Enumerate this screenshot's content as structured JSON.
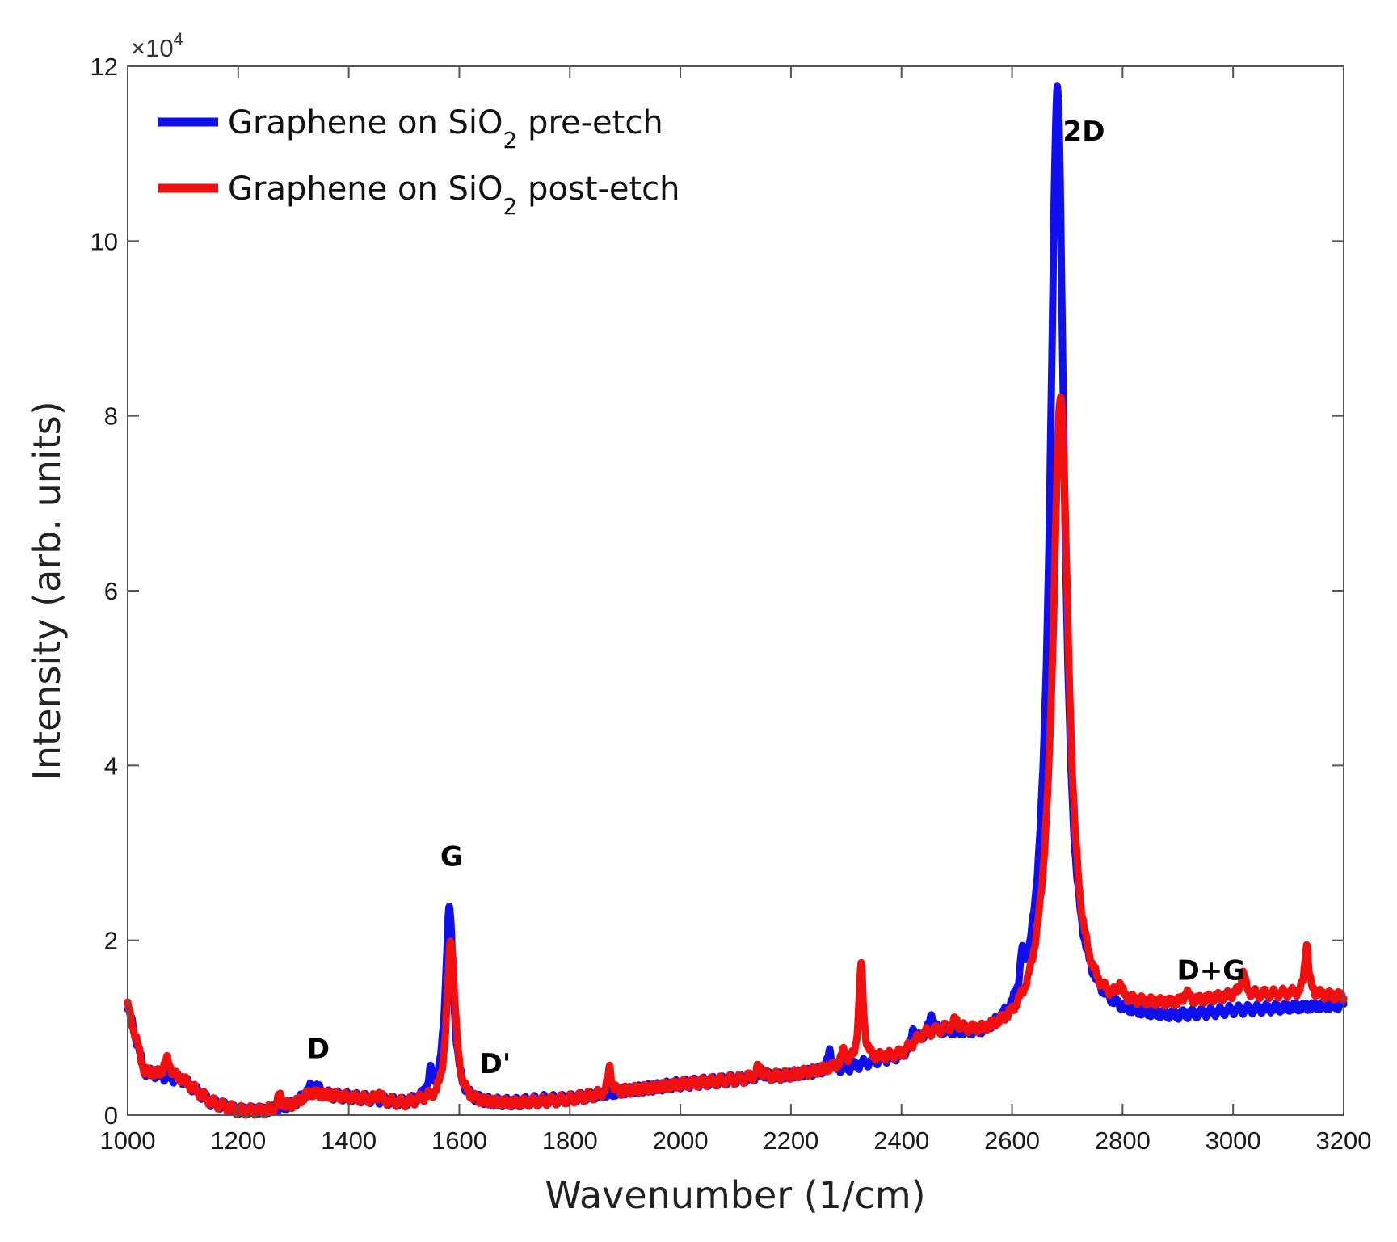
{
  "chart_data": {
    "type": "line",
    "xlabel": "Wavenumber (1/cm)",
    "ylabel": "Intensity (arb. units)",
    "xlim": [
      1000,
      3200
    ],
    "ylim": [
      0,
      120000
    ],
    "x_ticks": [
      1000,
      1200,
      1400,
      1600,
      1800,
      2000,
      2200,
      2400,
      2600,
      2800,
      3000,
      3200
    ],
    "x_tick_labels": [
      "1000",
      "1200",
      "1400",
      "1600",
      "1800",
      "2000",
      "2200",
      "2400",
      "2600",
      "2800",
      "3000",
      "3200"
    ],
    "y_ticks": [
      0,
      20000,
      40000,
      60000,
      80000,
      100000,
      120000
    ],
    "y_tick_labels": [
      "0",
      "2",
      "4",
      "6",
      "8",
      "10",
      "12"
    ],
    "y_multiplier": {
      "base": "×10",
      "exp": "4"
    },
    "grid": false,
    "legend_position": "top-left",
    "series": [
      {
        "name": "Graphene on SiO2 pre-etch",
        "legend": {
          "prefix": "Graphene on SiO",
          "sub": "2",
          "suffix": " pre-etch"
        },
        "color": "#1010ee",
        "baseline": [
          [
            1000,
            12500
          ],
          [
            1030,
            5000
          ],
          [
            1060,
            4500
          ],
          [
            1100,
            4000
          ],
          [
            1150,
            1500
          ],
          [
            1200,
            500
          ],
          [
            1250,
            500
          ],
          [
            1300,
            1200
          ],
          [
            1330,
            2500
          ],
          [
            1360,
            2200
          ],
          [
            1400,
            2000
          ],
          [
            1450,
            1700
          ],
          [
            1500,
            1200
          ],
          [
            1540,
            1500
          ],
          [
            1560,
            1000
          ],
          [
            1620,
            1200
          ],
          [
            1700,
            1300
          ],
          [
            1750,
            1700
          ],
          [
            1800,
            1800
          ],
          [
            1900,
            2700
          ],
          [
            2000,
            3500
          ],
          [
            2100,
            4000
          ],
          [
            2200,
            4500
          ],
          [
            2300,
            5200
          ],
          [
            2350,
            6000
          ],
          [
            2400,
            6500
          ],
          [
            2440,
            8500
          ],
          [
            2480,
            9000
          ],
          [
            2550,
            8500
          ],
          [
            2600,
            9500
          ],
          [
            2630,
            10500
          ],
          [
            2660,
            14000
          ],
          [
            2700,
            11500
          ],
          [
            2760,
            11000
          ],
          [
            2800,
            10800
          ],
          [
            2900,
            11000
          ],
          [
            3000,
            11800
          ],
          [
            3100,
            12200
          ],
          [
            3200,
            12500
          ]
        ],
        "peaks": [
          {
            "center": 1582,
            "height": 22500,
            "width": 9
          },
          {
            "center": 1548,
            "height": 2500,
            "width": 5
          },
          {
            "center": 1338,
            "height": 1000,
            "width": 10
          },
          {
            "center": 2682,
            "height": 105000,
            "width": 15
          },
          {
            "center": 2618,
            "height": 3500,
            "width": 4
          },
          {
            "center": 2270,
            "height": 2500,
            "width": 4
          },
          {
            "center": 2422,
            "height": 2000,
            "width": 4
          },
          {
            "center": 2455,
            "height": 2200,
            "width": 6
          },
          {
            "center": 2145,
            "height": 800,
            "width": 6
          }
        ]
      },
      {
        "name": "Graphene on SiO2 post-etch",
        "legend": {
          "prefix": "Graphene on SiO",
          "sub": "2",
          "suffix": " post-etch"
        },
        "color": "#f01010",
        "baseline": [
          [
            1000,
            12500
          ],
          [
            1030,
            5000
          ],
          [
            1060,
            4500
          ],
          [
            1100,
            4000
          ],
          [
            1150,
            1500
          ],
          [
            1200,
            500
          ],
          [
            1250,
            500
          ],
          [
            1300,
            1200
          ],
          [
            1330,
            2500
          ],
          [
            1360,
            2300
          ],
          [
            1400,
            2000
          ],
          [
            1450,
            1700
          ],
          [
            1500,
            1200
          ],
          [
            1540,
            1500
          ],
          [
            1560,
            1000
          ],
          [
            1620,
            1200
          ],
          [
            1700,
            1300
          ],
          [
            1750,
            1500
          ],
          [
            1800,
            1800
          ],
          [
            1900,
            2700
          ],
          [
            2000,
            3500
          ],
          [
            2100,
            4000
          ],
          [
            2200,
            4500
          ],
          [
            2300,
            5500
          ],
          [
            2350,
            6200
          ],
          [
            2400,
            6800
          ],
          [
            2440,
            9000
          ],
          [
            2480,
            9500
          ],
          [
            2550,
            9000
          ],
          [
            2600,
            9500
          ],
          [
            2630,
            10500
          ],
          [
            2660,
            13000
          ],
          [
            2700,
            12000
          ],
          [
            2760,
            11500
          ],
          [
            2800,
            12000
          ],
          [
            2900,
            12500
          ],
          [
            3000,
            13500
          ],
          [
            3100,
            13800
          ],
          [
            3200,
            13500
          ]
        ],
        "peaks": [
          {
            "center": 1585,
            "height": 19000,
            "width": 9
          },
          {
            "center": 2688,
            "height": 70000,
            "width": 17
          },
          {
            "center": 2327,
            "height": 11000,
            "width": 5
          },
          {
            "center": 1872,
            "height": 3000,
            "width": 4
          },
          {
            "center": 1072,
            "height": 2000,
            "width": 7
          },
          {
            "center": 1275,
            "height": 1500,
            "width": 4
          },
          {
            "center": 1455,
            "height": 700,
            "width": 4
          },
          {
            "center": 2142,
            "height": 1200,
            "width": 6
          },
          {
            "center": 2295,
            "height": 1500,
            "width": 5
          },
          {
            "center": 2498,
            "height": 1000,
            "width": 5
          },
          {
            "center": 2795,
            "height": 1500,
            "width": 4
          },
          {
            "center": 2915,
            "height": 1200,
            "width": 4
          },
          {
            "center": 3018,
            "height": 2500,
            "width": 5
          },
          {
            "center": 3133,
            "height": 6000,
            "width": 4
          }
        ]
      }
    ],
    "annotations": [
      {
        "text": "D",
        "x": 1345,
        "y": 6500
      },
      {
        "text": "G",
        "x": 1586,
        "y": 28500
      },
      {
        "text": "D'",
        "x": 1665,
        "y": 4800
      },
      {
        "text": "2D",
        "x": 2730,
        "y": 111500
      },
      {
        "text": "D+G",
        "x": 2960,
        "y": 15500
      }
    ]
  }
}
